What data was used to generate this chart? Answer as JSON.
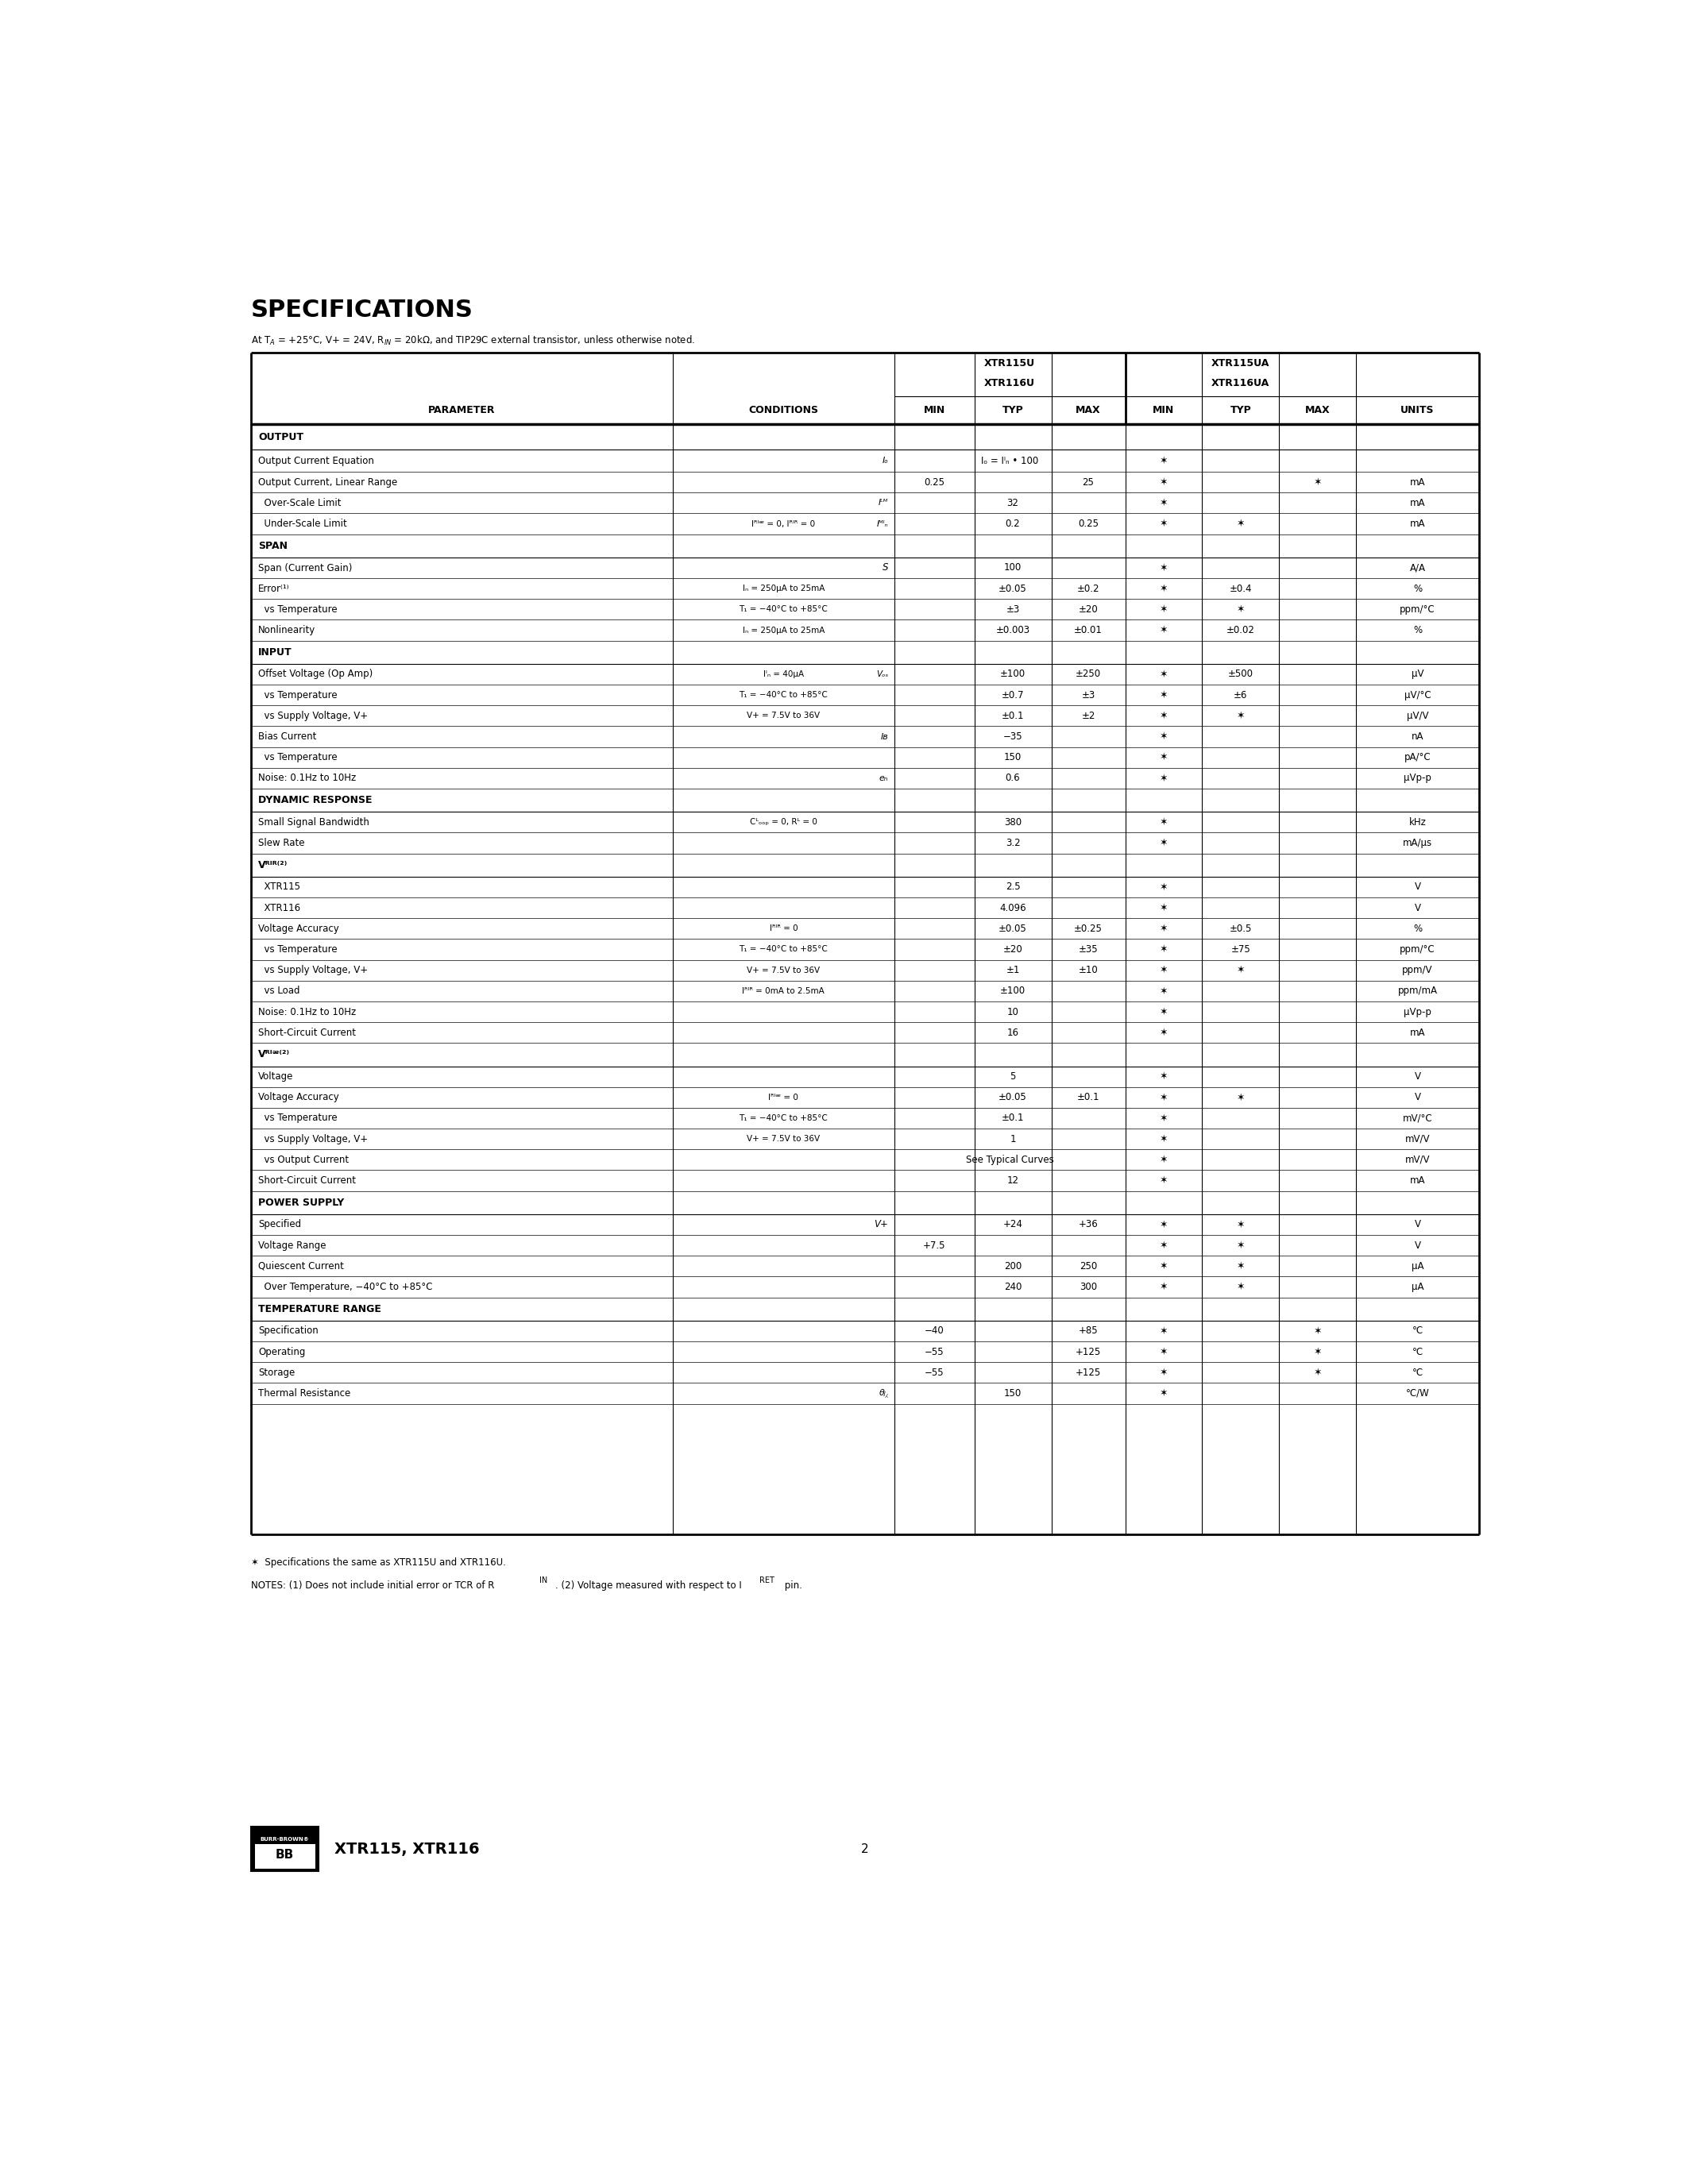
{
  "bg_color": "#ffffff",
  "title": "SPECIFICATIONS",
  "subtitle": "At T₁ = +25°C, V+ = 24V, Rᴵₙ = 20kΩ, and TIP29C external transistor, unless otherwise noted.",
  "page_number": "2",
  "model": "XTR115, XTR116",
  "ast": "✶"
}
